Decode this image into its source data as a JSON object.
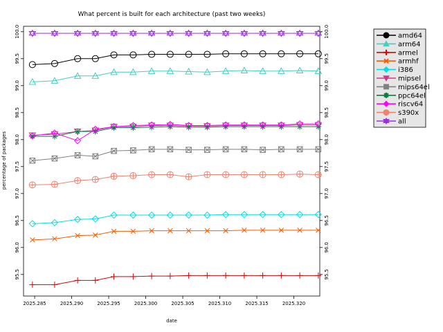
{
  "chart_data": {
    "type": "line",
    "title": "What percent is built for each architecture (past two weeks)",
    "xlabel": "date",
    "ylabel": "percentage of packages",
    "xlim": [
      2025.2835,
      2025.3235
    ],
    "ylim": [
      95.1,
      100.1
    ],
    "x_ticks": [
      2025.285,
      2025.29,
      2025.295,
      2025.3,
      2025.305,
      2025.31,
      2025.315,
      2025.32
    ],
    "x_tick_labels": [
      "2025.285",
      "2025.290",
      "2025.295",
      "2025.300",
      "2025.305",
      "2025.310",
      "2025.315",
      "2025.320"
    ],
    "y_ticks": [
      95.5,
      96.0,
      96.5,
      97.0,
      97.5,
      98.0,
      98.5,
      99.0,
      99.5,
      100.0
    ],
    "y_tick_labels": [
      "95.5",
      "96.0",
      "96.5",
      "97.0",
      "97.5",
      "98.0",
      "98.5",
      "99.0",
      "99.5",
      "100.0"
    ],
    "legend_position": "outside-right",
    "grid": false,
    "x": [
      2025.2847,
      2025.2877,
      2025.2908,
      2025.2932,
      2025.2957,
      2025.2983,
      2025.3008,
      2025.3033,
      2025.3058,
      2025.3083,
      2025.3108,
      2025.3133,
      2025.3158,
      2025.3183,
      2025.3208,
      2025.3233
    ],
    "series": [
      {
        "name": "amd64",
        "color": "#000000",
        "marker": "circle",
        "values": [
          99.39,
          99.41,
          99.5,
          99.5,
          99.57,
          99.57,
          99.58,
          99.58,
          99.58,
          99.58,
          99.59,
          99.59,
          99.59,
          99.59,
          99.59,
          99.59
        ]
      },
      {
        "name": "arm64",
        "color": "#40d0c0",
        "marker": "triangle",
        "values": [
          99.07,
          99.09,
          99.18,
          99.18,
          99.25,
          99.25,
          99.27,
          99.27,
          99.26,
          99.25,
          99.27,
          99.28,
          99.27,
          99.27,
          99.28,
          99.27
        ]
      },
      {
        "name": "armel",
        "color": "#e00000",
        "marker": "plus",
        "values": [
          95.31,
          95.31,
          95.39,
          95.39,
          95.46,
          95.46,
          95.47,
          95.47,
          95.48,
          95.48,
          95.48,
          95.48,
          95.48,
          95.48,
          95.48,
          95.48
        ]
      },
      {
        "name": "armhf",
        "color": "#ff5a00",
        "marker": "x",
        "values": [
          96.14,
          96.16,
          96.22,
          96.23,
          96.3,
          96.3,
          96.31,
          96.31,
          96.31,
          96.31,
          96.31,
          96.32,
          96.32,
          96.32,
          96.32,
          96.32
        ]
      },
      {
        "name": "i386",
        "color": "#00e0e0",
        "marker": "diamond",
        "values": [
          96.44,
          96.46,
          96.52,
          96.53,
          96.6,
          96.6,
          96.6,
          96.6,
          96.6,
          96.6,
          96.61,
          96.61,
          96.61,
          96.61,
          96.61,
          96.61
        ]
      },
      {
        "name": "mipsel",
        "color": "#c83c8c",
        "marker": "triangle-down",
        "values": [
          98.08,
          98.1,
          98.15,
          98.17,
          98.24,
          98.24,
          98.26,
          98.26,
          98.25,
          98.25,
          98.26,
          98.26,
          98.26,
          98.26,
          98.27,
          98.27
        ]
      },
      {
        "name": "mips64el",
        "color": "#808080",
        "marker": "square-x",
        "values": [
          97.61,
          97.65,
          97.71,
          97.69,
          97.79,
          97.8,
          97.82,
          97.82,
          97.81,
          97.81,
          97.82,
          97.82,
          97.81,
          97.82,
          97.82,
          97.82
        ]
      },
      {
        "name": "ppc64el",
        "color": "#008040",
        "marker": "asterisk",
        "values": [
          98.06,
          98.06,
          98.15,
          98.15,
          98.22,
          98.22,
          98.23,
          98.24,
          98.23,
          98.23,
          98.24,
          98.24,
          98.24,
          98.24,
          98.24,
          98.24
        ]
      },
      {
        "name": "riscv64",
        "color": "#ff00ff",
        "marker": "diamond",
        "values": [
          98.07,
          98.12,
          97.98,
          98.19,
          98.24,
          98.26,
          98.27,
          98.28,
          98.26,
          98.26,
          98.27,
          98.27,
          98.27,
          98.27,
          98.29,
          98.29
        ]
      },
      {
        "name": "s390x",
        "color": "#f08070",
        "marker": "circle-plus",
        "values": [
          97.16,
          97.17,
          97.24,
          97.26,
          97.32,
          97.33,
          97.35,
          97.35,
          97.31,
          97.35,
          97.35,
          97.35,
          97.35,
          97.35,
          97.36,
          97.35
        ]
      },
      {
        "name": "all",
        "color": "#9a2ee0",
        "marker": "star",
        "values": [
          99.97,
          99.97,
          99.97,
          99.97,
          99.97,
          99.97,
          99.97,
          99.97,
          99.97,
          99.97,
          99.97,
          99.97,
          99.97,
          99.97,
          99.97,
          99.97
        ]
      }
    ]
  }
}
